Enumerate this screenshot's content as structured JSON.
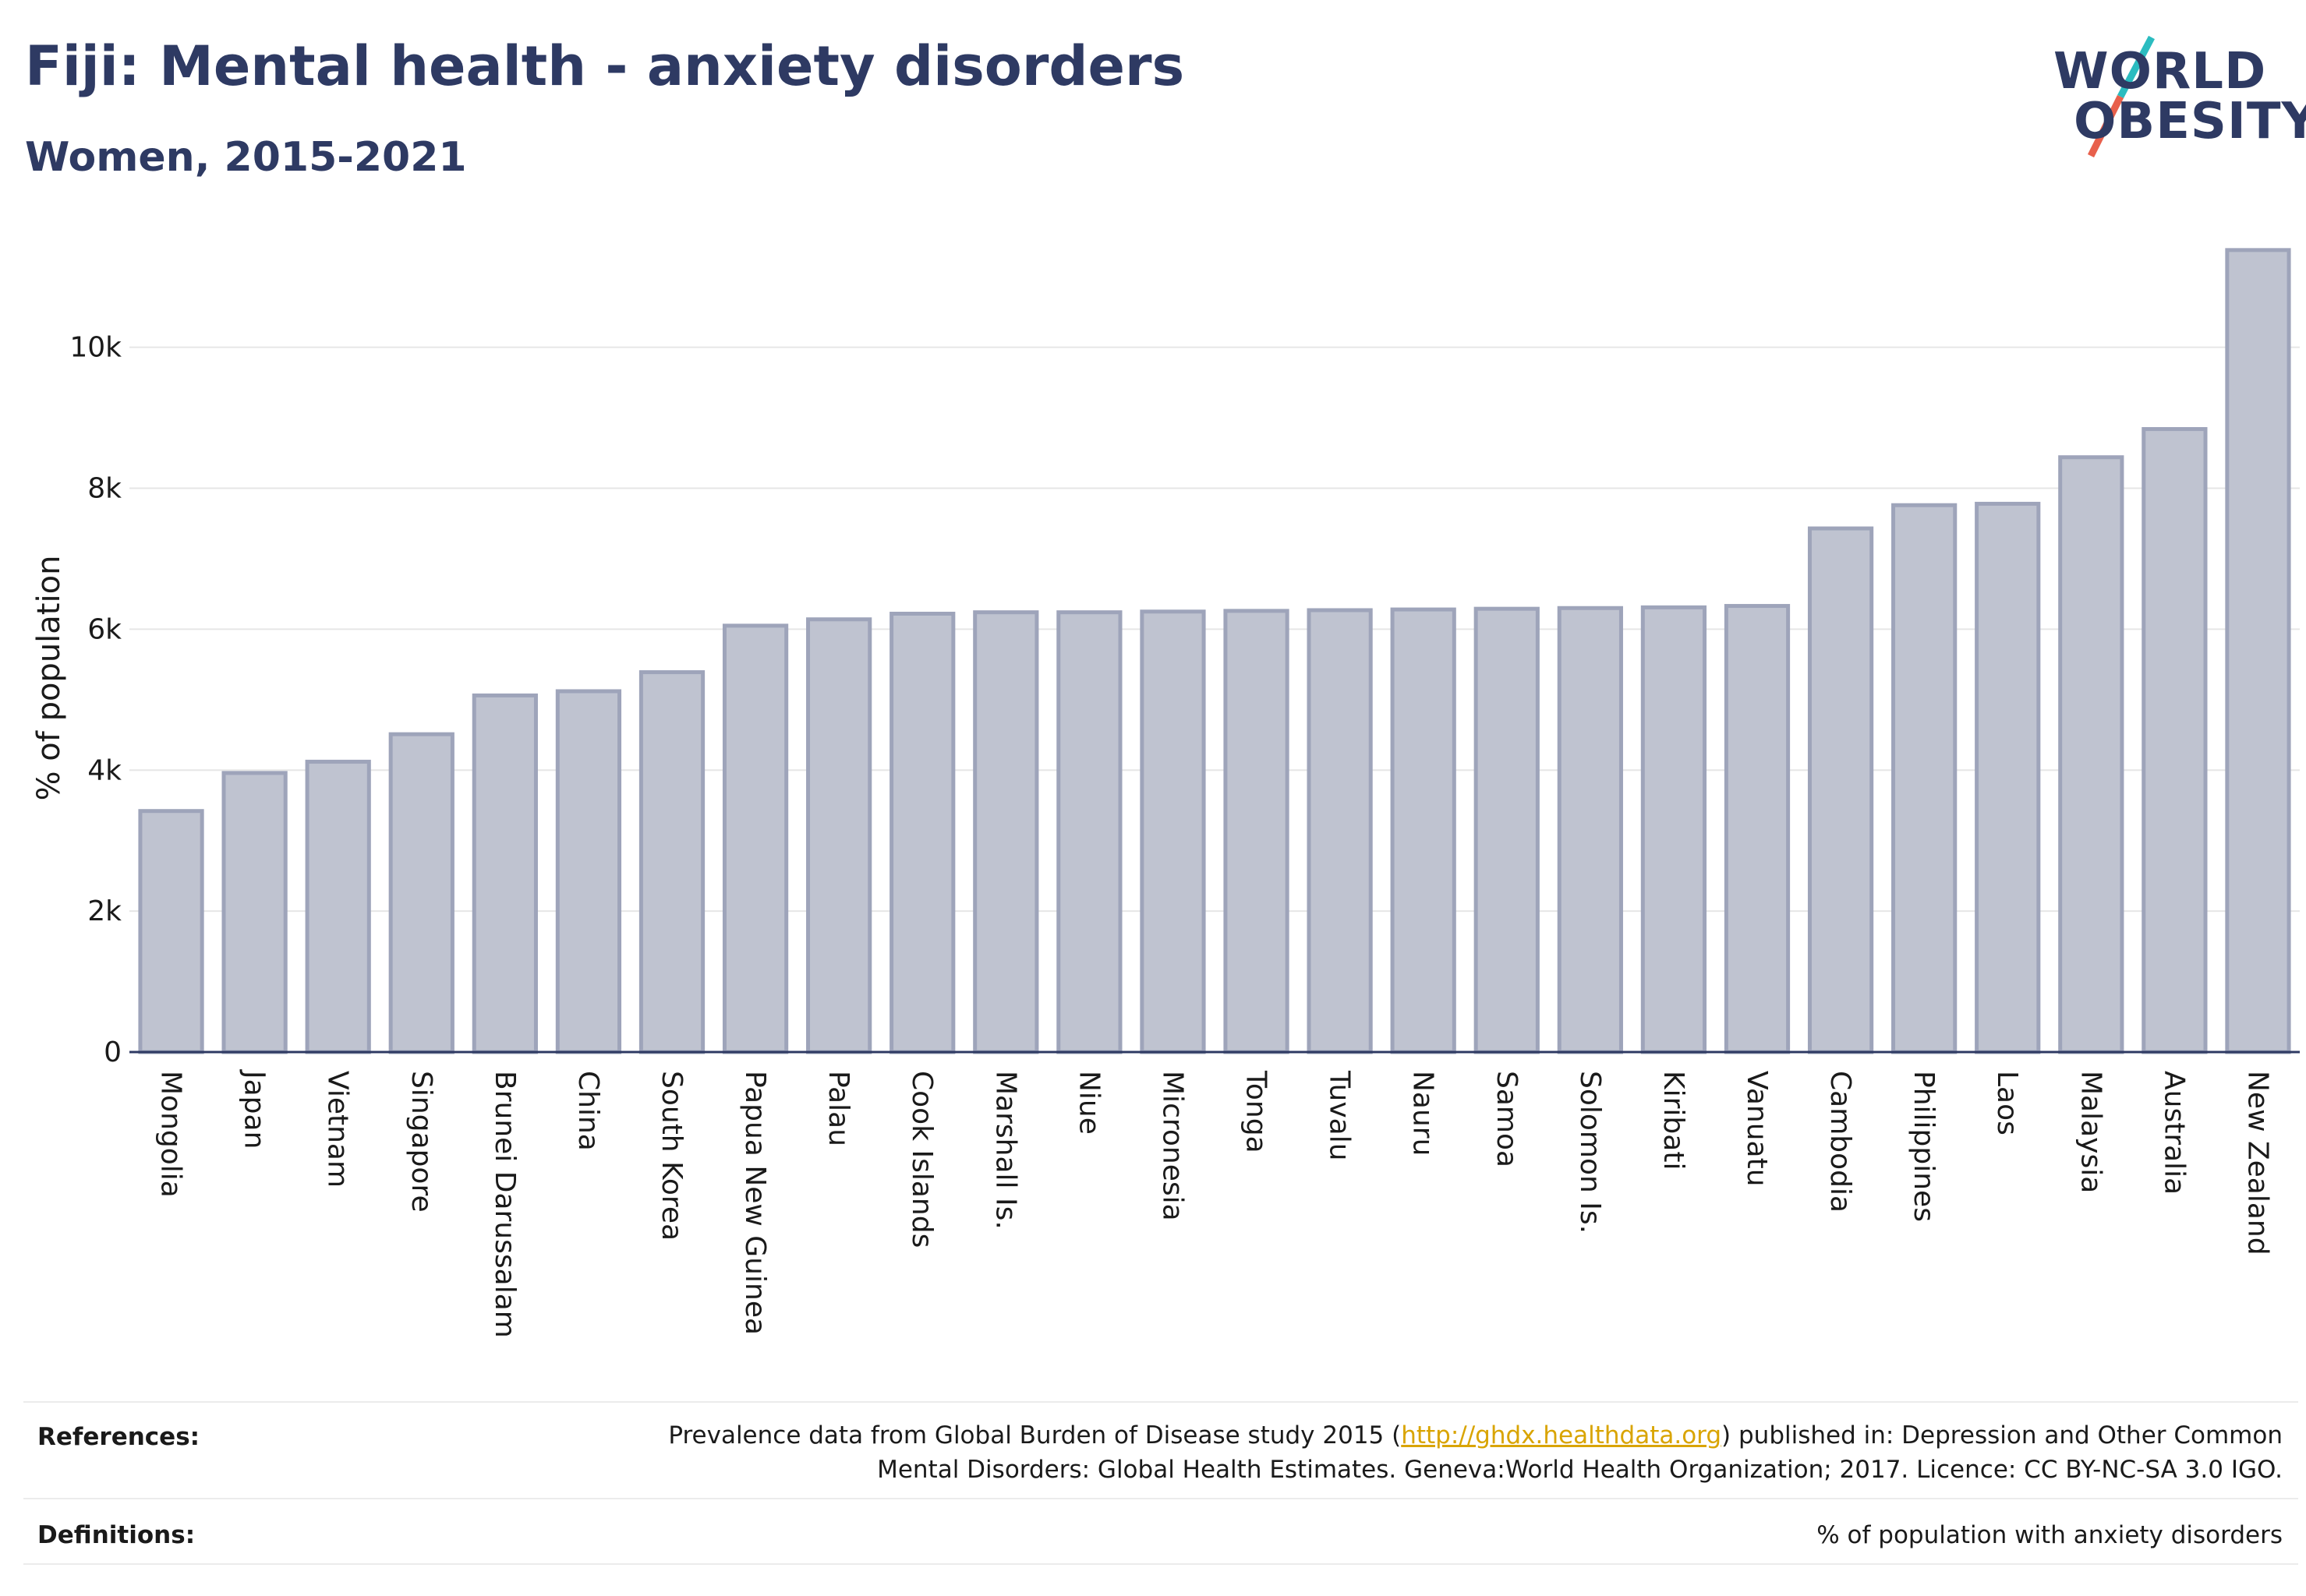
{
  "header": {
    "title": "Fiji: Mental health - anxiety disorders",
    "subtitle": "Women, 2015-2021"
  },
  "logo": {
    "line1": "WORLD",
    "line2": "OBESITY",
    "colors": {
      "text": "#2e3a63",
      "slash_top": "#2bbcc0",
      "slash_bottom": "#e8604c"
    }
  },
  "chart_data": {
    "type": "bar",
    "ylabel": "% of population",
    "ylim": [
      0,
      11500
    ],
    "yticks": [
      0,
      2000,
      4000,
      6000,
      8000,
      10000
    ],
    "ytick_labels": [
      "0",
      "2k",
      "4k",
      "6k",
      "8k",
      "10k"
    ],
    "grid": true,
    "bar_fill": "#bfc3d0",
    "bar_stroke": "#9ea4ba",
    "categories": [
      "Mongolia",
      "Japan",
      "Vietnam",
      "Singapore",
      "Brunei Darussalam",
      "China",
      "South Korea",
      "Papua New Guinea",
      "Palau",
      "Cook Islands",
      "Marshall Is.",
      "Niue",
      "Micronesia",
      "Tonga",
      "Tuvalu",
      "Nauru",
      "Samoa",
      "Solomon Is.",
      "Kiribati",
      "Vanuatu",
      "Cambodia",
      "Philippines",
      "Laos",
      "Malaysia",
      "Australia",
      "New Zealand"
    ],
    "values": [
      3420,
      3960,
      4120,
      4510,
      5060,
      5120,
      5390,
      6050,
      6140,
      6220,
      6240,
      6240,
      6250,
      6260,
      6270,
      6280,
      6290,
      6300,
      6310,
      6330,
      7430,
      7760,
      7780,
      8440,
      8840,
      11380
    ]
  },
  "footer": {
    "references_label": "References:",
    "references_before": "Prevalence data from Global Burden of Disease study 2015 (",
    "references_link": "http://ghdx.healthdata.org",
    "references_after_line1": ") published in: Depression and Other Common",
    "references_line2": "Mental Disorders: Global Health Estimates. Geneva:World Health Organization; 2017. Licence: CC BY-NC-SA 3.0 IGO.",
    "definitions_label": "Definitions:",
    "definitions_text": "% of population with anxiety disorders"
  }
}
